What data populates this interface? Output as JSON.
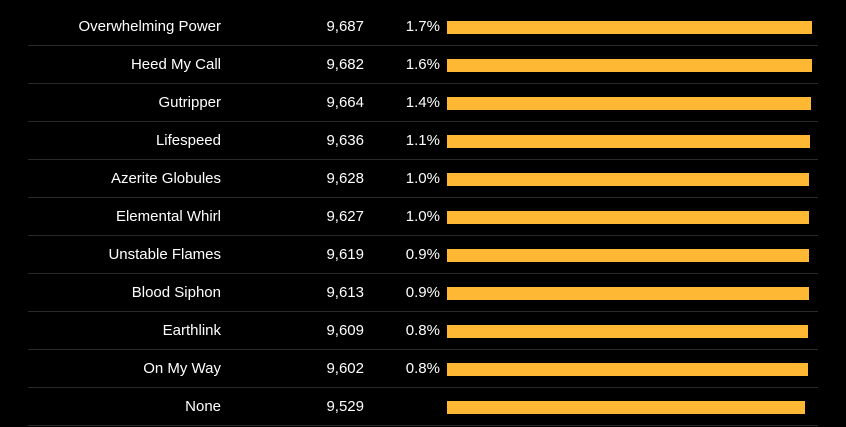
{
  "chart_data": {
    "type": "bar",
    "orientation": "horizontal",
    "bar_color": "#ffb833",
    "background": "#000000",
    "categories": [
      "Overwhelming Power",
      "Heed My Call",
      "Gutripper",
      "Lifespeed",
      "Azerite Globules",
      "Elemental Whirl",
      "Unstable Flames",
      "Blood Siphon",
      "Earthlink",
      "On My Way",
      "None"
    ],
    "values": [
      9687,
      9682,
      9664,
      9636,
      9628,
      9627,
      9619,
      9613,
      9609,
      9602,
      9529
    ],
    "value_labels": [
      "9,687",
      "9,682",
      "9,664",
      "9,636",
      "9,628",
      "9,627",
      "9,619",
      "9,613",
      "9,609",
      "9,602",
      "9,529"
    ],
    "percent_labels": [
      "1.7%",
      "1.6%",
      "1.4%",
      "1.1%",
      "1.0%",
      "1.0%",
      "0.9%",
      "0.9%",
      "0.8%",
      "0.8%",
      ""
    ]
  }
}
